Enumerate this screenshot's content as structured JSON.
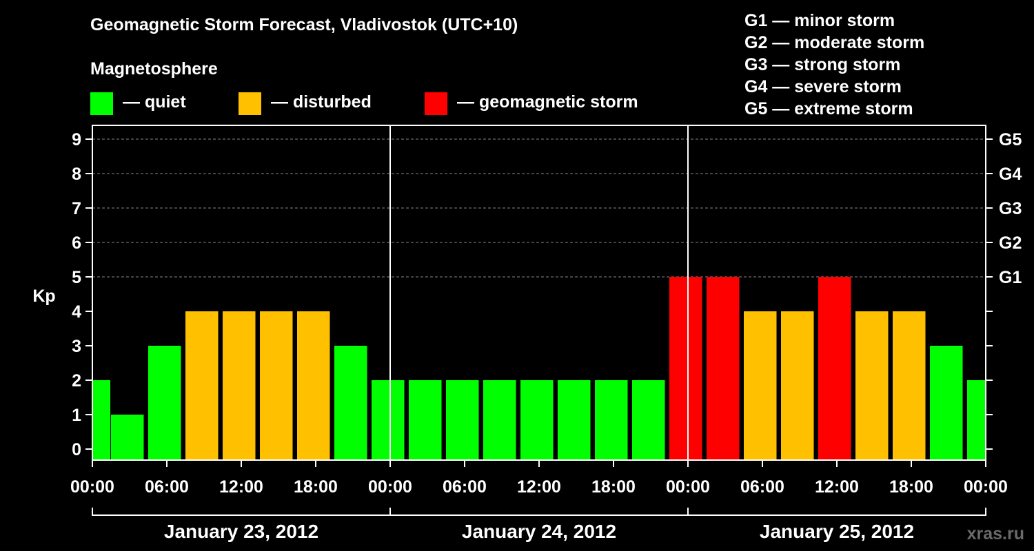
{
  "title": "Geomagnetic Storm Forecast, Vladivostok (UTC+10)",
  "magnetosphere_label": "Magnetosphere",
  "legend": [
    {
      "label": "— quiet",
      "color": "#00ff00"
    },
    {
      "label": "— disturbed",
      "color": "#ffc000"
    },
    {
      "label": "— geomagnetic storm",
      "color": "#ff0000"
    }
  ],
  "g_scale": [
    "G1 — minor storm",
    "G2 — moderate storm",
    "G3 — strong storm",
    "G4 — severe storm",
    "G5 — extreme storm"
  ],
  "watermark": "xras.ru",
  "colors": {
    "quiet": "#00ff00",
    "disturbed": "#ffc000",
    "storm": "#ff0000",
    "grid": "#888888"
  },
  "chart_data": {
    "type": "bar",
    "ylabel": "Kp",
    "ylim": [
      0,
      9
    ],
    "y_ticks": [
      "0",
      "1",
      "2",
      "3",
      "4",
      "5",
      "6",
      "7",
      "8",
      "9"
    ],
    "right_axis_labels": [
      {
        "kp": 5,
        "label": "G1"
      },
      {
        "kp": 6,
        "label": "G2"
      },
      {
        "kp": 7,
        "label": "G3"
      },
      {
        "kp": 8,
        "label": "G4"
      },
      {
        "kp": 9,
        "label": "G5"
      }
    ],
    "x_tick_labels": [
      "00:00",
      "06:00",
      "12:00",
      "18:00",
      "00:00",
      "06:00",
      "12:00",
      "18:00",
      "00:00",
      "06:00",
      "12:00",
      "18:00",
      "00:00"
    ],
    "days": [
      "January 23, 2012",
      "January 24, 2012",
      "January 25, 2012"
    ],
    "x_range_hours": [
      0,
      72
    ],
    "bars": [
      {
        "start_hour": 0,
        "kp": 2,
        "level": "quiet"
      },
      {
        "start_hour": 1.5,
        "kp": 1,
        "level": "quiet"
      },
      {
        "start_hour": 4.5,
        "kp": 3,
        "level": "quiet"
      },
      {
        "start_hour": 7.5,
        "kp": 4,
        "level": "disturbed"
      },
      {
        "start_hour": 10.5,
        "kp": 4,
        "level": "disturbed"
      },
      {
        "start_hour": 13.5,
        "kp": 4,
        "level": "disturbed"
      },
      {
        "start_hour": 16.5,
        "kp": 4,
        "level": "disturbed"
      },
      {
        "start_hour": 19.5,
        "kp": 3,
        "level": "quiet"
      },
      {
        "start_hour": 22.5,
        "kp": 2,
        "level": "quiet"
      },
      {
        "start_hour": 25.5,
        "kp": 2,
        "level": "quiet"
      },
      {
        "start_hour": 28.5,
        "kp": 2,
        "level": "quiet"
      },
      {
        "start_hour": 31.5,
        "kp": 2,
        "level": "quiet"
      },
      {
        "start_hour": 34.5,
        "kp": 2,
        "level": "quiet"
      },
      {
        "start_hour": 37.5,
        "kp": 2,
        "level": "quiet"
      },
      {
        "start_hour": 40.5,
        "kp": 2,
        "level": "quiet"
      },
      {
        "start_hour": 43.5,
        "kp": 2,
        "level": "quiet"
      },
      {
        "start_hour": 46.5,
        "kp": 5,
        "level": "storm"
      },
      {
        "start_hour": 49.5,
        "kp": 5,
        "level": "storm"
      },
      {
        "start_hour": 52.5,
        "kp": 4,
        "level": "disturbed"
      },
      {
        "start_hour": 55.5,
        "kp": 4,
        "level": "disturbed"
      },
      {
        "start_hour": 58.5,
        "kp": 5,
        "level": "storm"
      },
      {
        "start_hour": 61.5,
        "kp": 4,
        "level": "disturbed"
      },
      {
        "start_hour": 64.5,
        "kp": 4,
        "level": "disturbed"
      },
      {
        "start_hour": 67.5,
        "kp": 3,
        "level": "quiet"
      },
      {
        "start_hour": 70.5,
        "kp": 2,
        "level": "quiet"
      }
    ]
  }
}
